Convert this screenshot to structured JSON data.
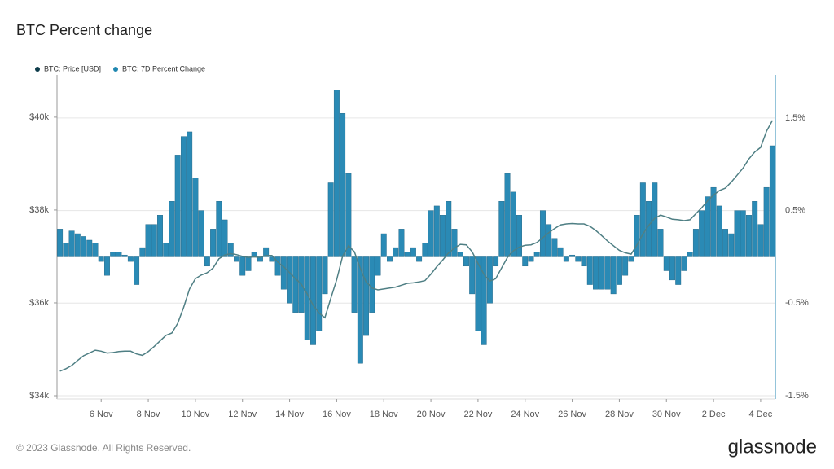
{
  "chart_data": {
    "type": "bar-line",
    "title": "BTC Percent change",
    "categories": [
      null,
      null,
      null,
      null,
      null,
      null,
      null,
      "6 Nov",
      null,
      null,
      null,
      null,
      null,
      null,
      null,
      "8 Nov",
      null,
      null,
      null,
      null,
      null,
      null,
      null,
      "10 Nov",
      null,
      null,
      null,
      null,
      null,
      null,
      null,
      "12 Nov",
      null,
      null,
      null,
      null,
      null,
      null,
      null,
      "14 Nov",
      null,
      null,
      null,
      null,
      null,
      null,
      null,
      "16 Nov",
      null,
      null,
      null,
      null,
      null,
      null,
      null,
      "18 Nov",
      null,
      null,
      null,
      null,
      null,
      null,
      null,
      "20 Nov",
      null,
      null,
      null,
      null,
      null,
      null,
      null,
      "22 Nov",
      null,
      null,
      null,
      null,
      null,
      null,
      null,
      "24 Nov",
      null,
      null,
      null,
      null,
      null,
      null,
      null,
      "26 Nov",
      null,
      null,
      null,
      null,
      null,
      null,
      null,
      "28 Nov",
      null,
      null,
      null,
      null,
      null,
      null,
      null,
      "30 Nov",
      null,
      null,
      null,
      null,
      null,
      null,
      null,
      "2 Dec",
      null,
      null,
      null,
      null,
      null,
      null,
      null,
      "4 Dec",
      null,
      null
    ],
    "series": [
      {
        "name": "BTC: Price [USD]",
        "color": "#4f7f84",
        "legend_color": "#0d3b4a",
        "kind": "line",
        "axis": "y",
        "values": [
          34530,
          34580,
          34650,
          34760,
          34860,
          34920,
          34980,
          34960,
          34920,
          34930,
          34950,
          34960,
          34960,
          34900,
          34870,
          34950,
          35060,
          35180,
          35300,
          35350,
          35560,
          35900,
          36300,
          36520,
          36600,
          36650,
          36750,
          36950,
          37030,
          37060,
          37040,
          37000,
          36980,
          36990,
          36980,
          37020,
          37020,
          36880,
          36780,
          36650,
          36520,
          36400,
          36190,
          35950,
          35780,
          35680,
          36100,
          36500,
          37000,
          37230,
          37100,
          36750,
          36450,
          36320,
          36280,
          36300,
          36320,
          36340,
          36380,
          36420,
          36430,
          36450,
          36480,
          36620,
          36780,
          36920,
          37080,
          37180,
          37260,
          37250,
          37100,
          36850,
          36620,
          36470,
          36520,
          36750,
          36980,
          37120,
          37200,
          37240,
          37250,
          37300,
          37400,
          37510,
          37600,
          37680,
          37700,
          37710,
          37700,
          37700,
          37650,
          37560,
          37450,
          37330,
          37230,
          37130,
          37080,
          37050,
          37250,
          37480,
          37670,
          37820,
          37890,
          37850,
          37800,
          37790,
          37770,
          37790,
          37920,
          38050,
          38200,
          38320,
          38420,
          38470,
          38600,
          38750,
          38900,
          39100,
          39250,
          39350,
          39700,
          39930
        ]
      },
      {
        "name": "BTC: 7D Percent Change",
        "color": "#2a8ab5",
        "legend_color": "#1f87b0",
        "kind": "bar",
        "axis": "y2",
        "values": [
          0.3,
          0.15,
          0.28,
          0.25,
          0.22,
          0.18,
          0.15,
          -0.05,
          -0.2,
          0.05,
          0.05,
          0.02,
          -0.05,
          -0.3,
          0.1,
          0.35,
          0.35,
          0.45,
          0.15,
          0.6,
          1.1,
          1.3,
          1.35,
          0.85,
          0.5,
          -0.1,
          0.3,
          0.6,
          0.4,
          0.15,
          -0.05,
          -0.2,
          -0.15,
          0.05,
          -0.05,
          0.1,
          -0.05,
          -0.2,
          -0.35,
          -0.5,
          -0.6,
          -0.6,
          -0.9,
          -0.95,
          -0.8,
          -0.4,
          0.8,
          1.8,
          1.55,
          0.9,
          -0.6,
          -1.15,
          -0.85,
          -0.6,
          -0.2,
          0.25,
          -0.05,
          0.1,
          0.3,
          0.05,
          0.1,
          -0.05,
          0.15,
          0.5,
          0.55,
          0.45,
          0.6,
          0.3,
          0.05,
          -0.1,
          -0.4,
          -0.8,
          -0.95,
          -0.5,
          -0.1,
          0.6,
          0.9,
          0.7,
          0.45,
          -0.1,
          -0.05,
          0.05,
          0.5,
          0.35,
          0.2,
          0.1,
          -0.05,
          0.02,
          -0.05,
          -0.1,
          -0.3,
          -0.35,
          -0.35,
          -0.35,
          -0.4,
          -0.3,
          -0.2,
          -0.05,
          0.45,
          0.8,
          0.6,
          0.8,
          0.3,
          -0.15,
          -0.25,
          -0.3,
          -0.15,
          0.05,
          0.3,
          0.5,
          0.65,
          0.75,
          0.55,
          0.3,
          0.25,
          0.5,
          0.5,
          0.45,
          0.6,
          0.35,
          0.75,
          1.2
        ]
      }
    ],
    "ylim": [
      33930,
      40910
    ],
    "yticks": [
      {
        "value": 34000,
        "label": "$34k"
      },
      {
        "value": 36000,
        "label": "$36k"
      },
      {
        "value": 38000,
        "label": "$38k"
      },
      {
        "value": 40000,
        "label": "$40k"
      }
    ],
    "y2lim": [
      -1.535,
      1.965
    ],
    "y2ticks": [
      {
        "value": -1.5,
        "label": "-1.5%"
      },
      {
        "value": -0.5,
        "label": "-0.5%"
      },
      {
        "value": 0.5,
        "label": "0.5%"
      },
      {
        "value": 1.5,
        "label": "1.5%"
      }
    ],
    "grid": true
  },
  "footer": {
    "copyright": "© 2023 Glassnode. All Rights Reserved.",
    "logo": "glassnode"
  }
}
